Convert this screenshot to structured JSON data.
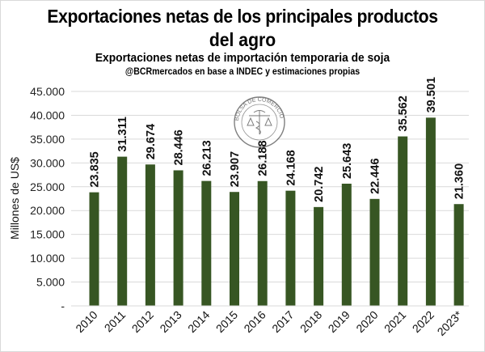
{
  "chart_data": {
    "type": "bar",
    "title": "Exportaciones netas de los principales productos del agro",
    "title_line1": "Exportaciones netas de los principales productos",
    "title_line2": "del agro",
    "subtitle": "Exportaciones netas de importación temporaria de soja",
    "source": "@BCRmercados  en base a INDEC y estimaciones propias",
    "xlabel": "",
    "ylabel": "Millones de US$",
    "ylim": [
      0,
      45000
    ],
    "yticks": [
      0,
      5000,
      10000,
      15000,
      20000,
      25000,
      30000,
      35000,
      40000,
      45000
    ],
    "ytick_labels": [
      "-",
      "5.000",
      "10.000",
      "15.000",
      "20.000",
      "25.000",
      "30.000",
      "35.000",
      "40.000",
      "45.000"
    ],
    "grid": true,
    "legend": "none",
    "categories": [
      "2010",
      "2011",
      "2012",
      "2013",
      "2014",
      "2015",
      "2016",
      "2017",
      "2018",
      "2019",
      "2020",
      "2021",
      "2022",
      "2023*"
    ],
    "values": [
      23835,
      31311,
      29674,
      28446,
      26213,
      23907,
      26188,
      24168,
      20742,
      25643,
      22446,
      35562,
      39501,
      21360
    ],
    "data_labels": [
      "23.835",
      "31.311",
      "29.674",
      "28.446",
      "26.213",
      "23.907",
      "26.188",
      "24.168",
      "20.742",
      "25.643",
      "22.446",
      "35.562",
      "39.501",
      "21.360"
    ],
    "bar_color": "#375623",
    "watermark": "BOLSA DE COMERCIO DE ROSARIO"
  }
}
